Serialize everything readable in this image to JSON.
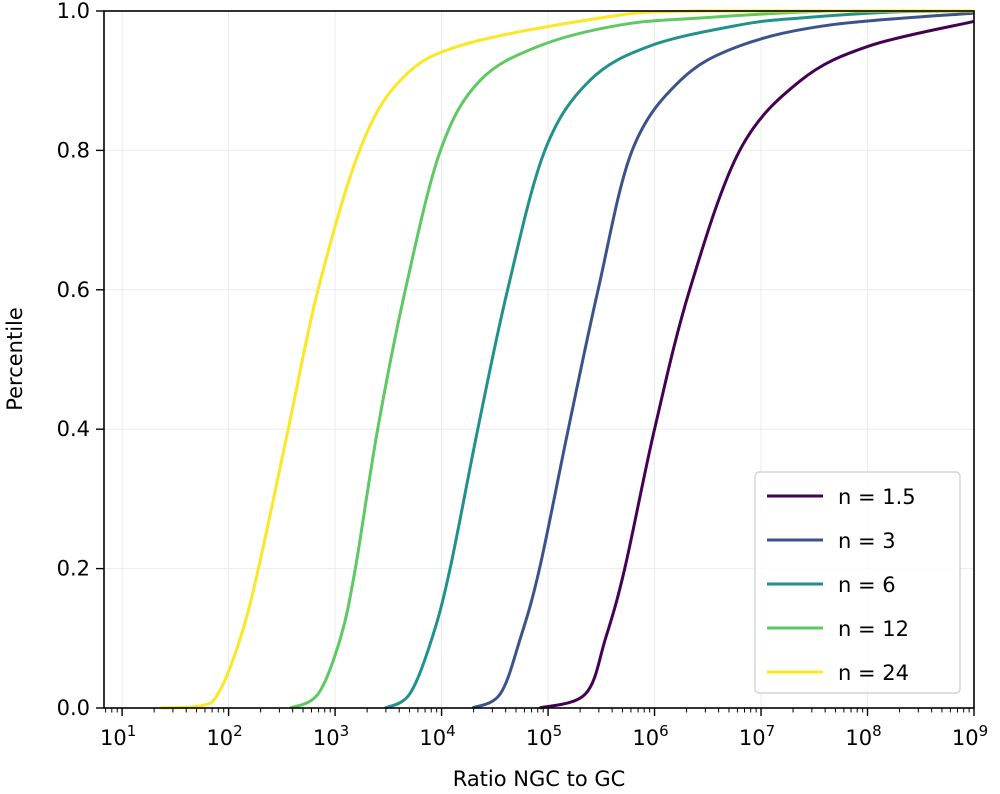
{
  "chart_data": {
    "type": "line",
    "title": "",
    "xlabel": "Ratio NGC to GC",
    "ylabel": "Percentile",
    "xscale": "log",
    "xlim_log10": [
      0.83,
      9
    ],
    "ylim": [
      0,
      1.0
    ],
    "grid": true,
    "legend_position": "lower-right",
    "x_ticks": [
      {
        "exp": 1,
        "base": "10",
        "sup": "1"
      },
      {
        "exp": 2,
        "base": "10",
        "sup": "2"
      },
      {
        "exp": 3,
        "base": "10",
        "sup": "3"
      },
      {
        "exp": 4,
        "base": "10",
        "sup": "4"
      },
      {
        "exp": 5,
        "base": "10",
        "sup": "5"
      },
      {
        "exp": 6,
        "base": "10",
        "sup": "6"
      },
      {
        "exp": 7,
        "base": "10",
        "sup": "7"
      },
      {
        "exp": 8,
        "base": "10",
        "sup": "8"
      },
      {
        "exp": 9,
        "base": "10",
        "sup": "9"
      }
    ],
    "y_ticks": [
      {
        "value": 0.0,
        "label": "0.0"
      },
      {
        "value": 0.2,
        "label": "0.2"
      },
      {
        "value": 0.4,
        "label": "0.4"
      },
      {
        "value": 0.6,
        "label": "0.6"
      },
      {
        "value": 0.8,
        "label": "0.8"
      },
      {
        "value": 1.0,
        "label": "1.0"
      }
    ],
    "series": [
      {
        "name": "n = 1.5",
        "color": "#440154",
        "x_log10": [
          4.92,
          5.35,
          5.54,
          5.72,
          6.0,
          6.33,
          6.8,
          7.37,
          8.02,
          9.0
        ],
        "y": [
          0,
          0.02,
          0.1,
          0.2,
          0.4,
          0.6,
          0.8,
          0.9,
          0.95,
          0.985
        ]
      },
      {
        "name": "n = 3",
        "color": "#3b528b",
        "x_log10": [
          4.29,
          4.55,
          4.74,
          4.92,
          5.19,
          5.47,
          5.79,
          6.24,
          6.8,
          7.65,
          9.0
        ],
        "y": [
          0,
          0.02,
          0.1,
          0.2,
          0.4,
          0.6,
          0.8,
          0.9,
          0.95,
          0.98,
          0.997
        ]
      },
      {
        "name": "n = 6",
        "color": "#21918c",
        "x_log10": [
          3.47,
          3.7,
          3.91,
          4.08,
          4.34,
          4.62,
          4.97,
          5.39,
          5.96,
          6.8,
          7.37,
          8.3,
          9.0
        ],
        "y": [
          0,
          0.02,
          0.1,
          0.2,
          0.4,
          0.6,
          0.8,
          0.9,
          0.95,
          0.98,
          0.99,
          0.999,
          1.0
        ]
      },
      {
        "name": "n = 12",
        "color": "#5ec962",
        "x_log10": [
          2.58,
          2.84,
          3.05,
          3.19,
          3.4,
          3.66,
          3.99,
          4.36,
          4.92,
          5.68,
          6.43,
          7.65,
          9.0
        ],
        "y": [
          0,
          0.02,
          0.1,
          0.2,
          0.4,
          0.6,
          0.8,
          0.9,
          0.95,
          0.98,
          0.99,
          1.0,
          1.0
        ]
      },
      {
        "name": "n = 24",
        "color": "#fde725",
        "x_log10": [
          1.36,
          1.73,
          1.9,
          2.11,
          2.28,
          2.56,
          2.84,
          3.23,
          3.61,
          4.17,
          5.49,
          6.4,
          9.0
        ],
        "y": [
          0,
          0.003,
          0.02,
          0.1,
          0.2,
          0.4,
          0.6,
          0.8,
          0.9,
          0.95,
          0.99,
          1.0,
          1.0
        ]
      }
    ]
  }
}
